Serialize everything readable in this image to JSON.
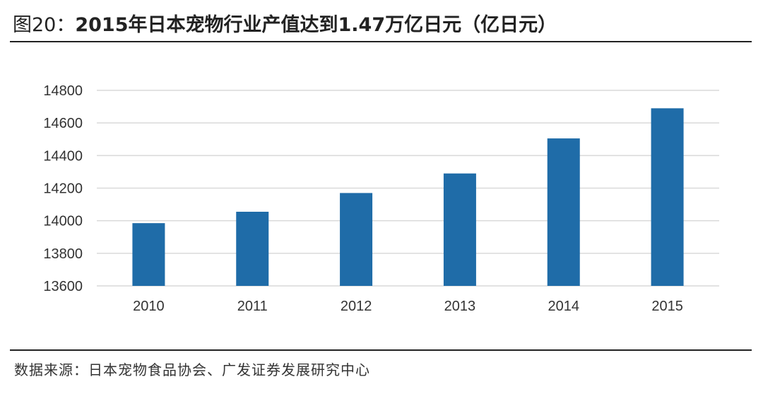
{
  "figure": {
    "label": "图20：",
    "title": "2015年日本宠物行业产值达到1.47万亿日元（亿日元）"
  },
  "source": "数据来源：日本宠物食品协会、广发证券发展研究中心",
  "chart_data": {
    "type": "bar",
    "categories": [
      "2010",
      "2011",
      "2012",
      "2013",
      "2014",
      "2015"
    ],
    "values": [
      13985,
      14055,
      14170,
      14290,
      14505,
      14690
    ],
    "ylim": [
      13600,
      14800
    ],
    "yticks": [
      13600,
      13800,
      14000,
      14200,
      14400,
      14600,
      14800
    ],
    "grid": true,
    "bar_color": "#1F6CA8",
    "grid_color": "#D9D9D9"
  }
}
